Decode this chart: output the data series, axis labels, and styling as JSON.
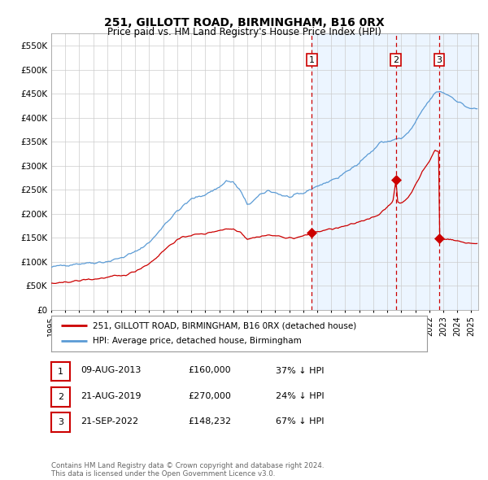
{
  "title": "251, GILLOTT ROAD, BIRMINGHAM, B16 0RX",
  "subtitle": "Price paid vs. HM Land Registry's House Price Index (HPI)",
  "title_fontsize": 10,
  "subtitle_fontsize": 8.5,
  "ylim": [
    0,
    575000
  ],
  "yticks": [
    0,
    50000,
    100000,
    150000,
    200000,
    250000,
    300000,
    350000,
    400000,
    450000,
    500000,
    550000
  ],
  "ytick_labels": [
    "£0",
    "£50K",
    "£100K",
    "£150K",
    "£200K",
    "£250K",
    "£300K",
    "£350K",
    "£400K",
    "£450K",
    "£500K",
    "£550K"
  ],
  "xlim_start": 1995.0,
  "xlim_end": 2025.5,
  "xtick_years": [
    1995,
    1996,
    1997,
    1998,
    1999,
    2000,
    2001,
    2002,
    2003,
    2004,
    2005,
    2006,
    2007,
    2008,
    2009,
    2010,
    2011,
    2012,
    2013,
    2014,
    2015,
    2016,
    2017,
    2018,
    2019,
    2020,
    2021,
    2022,
    2023,
    2024,
    2025
  ],
  "hpi_color": "#5b9bd5",
  "hpi_fill_color": "#ddeeff",
  "price_color": "#cc0000",
  "grid_color": "#cccccc",
  "background_color": "#ffffff",
  "shade_color": "#ddeeff",
  "purchases": [
    {
      "date": 2013.61,
      "price": 160000,
      "label": "1"
    },
    {
      "date": 2019.62,
      "price": 270000,
      "label": "2"
    },
    {
      "date": 2022.72,
      "price": 148232,
      "label": "3"
    }
  ],
  "shade_start": 2013.61,
  "legend_items": [
    {
      "label": "251, GILLOTT ROAD, BIRMINGHAM, B16 0RX (detached house)",
      "color": "#cc0000"
    },
    {
      "label": "HPI: Average price, detached house, Birmingham",
      "color": "#5b9bd5"
    }
  ],
  "table_rows": [
    {
      "num": "1",
      "date": "09-AUG-2013",
      "price": "£160,000",
      "pct": "37% ↓ HPI"
    },
    {
      "num": "2",
      "date": "21-AUG-2019",
      "price": "£270,000",
      "pct": "24% ↓ HPI"
    },
    {
      "num": "3",
      "date": "21-SEP-2022",
      "price": "£148,232",
      "pct": "67% ↓ HPI"
    }
  ],
  "footer": "Contains HM Land Registry data © Crown copyright and database right 2024.\nThis data is licensed under the Open Government Licence v3.0.",
  "hpi_anchors": [
    [
      1995.0,
      88000
    ],
    [
      1996.0,
      93000
    ],
    [
      1997.0,
      96000
    ],
    [
      1998.0,
      98000
    ],
    [
      1999.0,
      100000
    ],
    [
      2000.0,
      108000
    ],
    [
      2001.0,
      120000
    ],
    [
      2002.0,
      140000
    ],
    [
      2002.5,
      155000
    ],
    [
      2003.0,
      175000
    ],
    [
      2004.0,
      205000
    ],
    [
      2005.0,
      230000
    ],
    [
      2006.0,
      240000
    ],
    [
      2007.0,
      255000
    ],
    [
      2007.5,
      268000
    ],
    [
      2008.0,
      265000
    ],
    [
      2008.5,
      248000
    ],
    [
      2009.0,
      218000
    ],
    [
      2009.5,
      228000
    ],
    [
      2010.0,
      240000
    ],
    [
      2010.5,
      248000
    ],
    [
      2011.0,
      244000
    ],
    [
      2011.5,
      238000
    ],
    [
      2012.0,
      234000
    ],
    [
      2012.5,
      238000
    ],
    [
      2013.0,
      242000
    ],
    [
      2013.61,
      252000
    ],
    [
      2014.0,
      258000
    ],
    [
      2014.5,
      262000
    ],
    [
      2015.0,
      270000
    ],
    [
      2015.5,
      275000
    ],
    [
      2016.0,
      285000
    ],
    [
      2016.5,
      295000
    ],
    [
      2017.0,
      308000
    ],
    [
      2017.5,
      320000
    ],
    [
      2018.0,
      332000
    ],
    [
      2018.5,
      348000
    ],
    [
      2019.0,
      350000
    ],
    [
      2019.62,
      355000
    ],
    [
      2020.0,
      356000
    ],
    [
      2020.5,
      368000
    ],
    [
      2021.0,
      388000
    ],
    [
      2021.5,
      415000
    ],
    [
      2022.0,
      435000
    ],
    [
      2022.5,
      453000
    ],
    [
      2022.72,
      455000
    ],
    [
      2023.0,
      452000
    ],
    [
      2023.3,
      448000
    ],
    [
      2023.5,
      445000
    ],
    [
      2024.0,
      435000
    ],
    [
      2024.5,
      425000
    ],
    [
      2025.0,
      418000
    ]
  ],
  "price_anchors": [
    [
      1995.0,
      55000
    ],
    [
      1995.5,
      54500
    ],
    [
      1996.0,
      57000
    ],
    [
      1996.5,
      59000
    ],
    [
      1997.0,
      60000
    ],
    [
      1997.5,
      63000
    ],
    [
      1998.0,
      63000
    ],
    [
      1998.5,
      65000
    ],
    [
      1999.0,
      67000
    ],
    [
      1999.5,
      70000
    ],
    [
      2000.0,
      70000
    ],
    [
      2000.5,
      74000
    ],
    [
      2001.0,
      80000
    ],
    [
      2001.5,
      88000
    ],
    [
      2002.0,
      96000
    ],
    [
      2002.5,
      108000
    ],
    [
      2003.0,
      122000
    ],
    [
      2003.5,
      135000
    ],
    [
      2004.0,
      145000
    ],
    [
      2004.5,
      152000
    ],
    [
      2005.0,
      155000
    ],
    [
      2005.5,
      157000
    ],
    [
      2006.0,
      158000
    ],
    [
      2006.5,
      162000
    ],
    [
      2007.0,
      165000
    ],
    [
      2007.5,
      168000
    ],
    [
      2008.0,
      168000
    ],
    [
      2008.5,
      162000
    ],
    [
      2009.0,
      147000
    ],
    [
      2009.5,
      150000
    ],
    [
      2010.0,
      153000
    ],
    [
      2010.5,
      155000
    ],
    [
      2011.0,
      154000
    ],
    [
      2011.5,
      151000
    ],
    [
      2012.0,
      150000
    ],
    [
      2012.3,
      148000
    ],
    [
      2012.5,
      150000
    ],
    [
      2012.8,
      152000
    ],
    [
      2013.0,
      153000
    ],
    [
      2013.3,
      156000
    ],
    [
      2013.61,
      160000
    ],
    [
      2014.0,
      162000
    ],
    [
      2014.5,
      165000
    ],
    [
      2015.0,
      168000
    ],
    [
      2015.5,
      170000
    ],
    [
      2016.0,
      174000
    ],
    [
      2016.5,
      178000
    ],
    [
      2017.0,
      183000
    ],
    [
      2017.5,
      188000
    ],
    [
      2018.0,
      193000
    ],
    [
      2018.5,
      200000
    ],
    [
      2019.0,
      213000
    ],
    [
      2019.4,
      225000
    ],
    [
      2019.62,
      270000
    ],
    [
      2019.75,
      225000
    ],
    [
      2019.9,
      222000
    ],
    [
      2020.0,
      222000
    ],
    [
      2020.3,
      228000
    ],
    [
      2020.5,
      235000
    ],
    [
      2020.8,
      248000
    ],
    [
      2021.0,
      258000
    ],
    [
      2021.3,
      275000
    ],
    [
      2021.5,
      288000
    ],
    [
      2021.8,
      300000
    ],
    [
      2022.0,
      308000
    ],
    [
      2022.2,
      320000
    ],
    [
      2022.4,
      332000
    ],
    [
      2022.6,
      330000
    ],
    [
      2022.71,
      328000
    ],
    [
      2022.72,
      148232
    ],
    [
      2022.75,
      148232
    ],
    [
      2022.85,
      148500
    ],
    [
      2023.0,
      148000
    ],
    [
      2023.5,
      146000
    ],
    [
      2024.0,
      143000
    ],
    [
      2024.5,
      140000
    ],
    [
      2025.0,
      138000
    ]
  ]
}
